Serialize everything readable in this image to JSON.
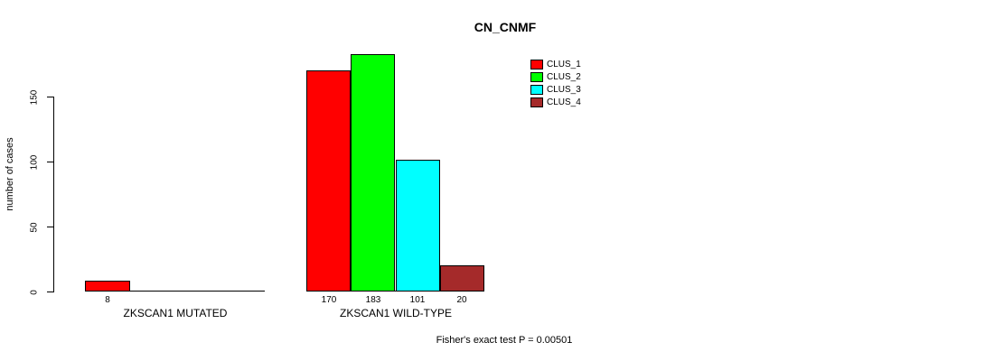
{
  "chart_data": {
    "type": "bar",
    "title": "CN_CNMF",
    "ylabel": "number of cases",
    "xlabel": "",
    "ylim": [
      0,
      183
    ],
    "yticks": [
      0,
      50,
      100,
      150
    ],
    "grid": false,
    "legend_position": "top-right",
    "categories": [
      "ZKSCAN1 MUTATED",
      "ZKSCAN1 WILD-TYPE"
    ],
    "series": [
      {
        "name": "CLUS_1",
        "color": "#FF0000",
        "values": [
          8,
          170
        ]
      },
      {
        "name": "CLUS_2",
        "color": "#00FF00",
        "values": [
          0,
          183
        ]
      },
      {
        "name": "CLUS_3",
        "color": "#00FFFF",
        "values": [
          0,
          101
        ]
      },
      {
        "name": "CLUS_4",
        "color": "#A52A2A",
        "values": [
          0,
          20
        ]
      }
    ],
    "bar_value_labels": [
      [
        "8",
        "",
        "",
        ""
      ],
      [
        "170",
        "183",
        "101",
        "20"
      ]
    ],
    "footnote": "Fisher's exact test P = 0.00501"
  },
  "colors": {
    "text": "#000000",
    "background": "#ffffff",
    "axis": "#000000"
  }
}
